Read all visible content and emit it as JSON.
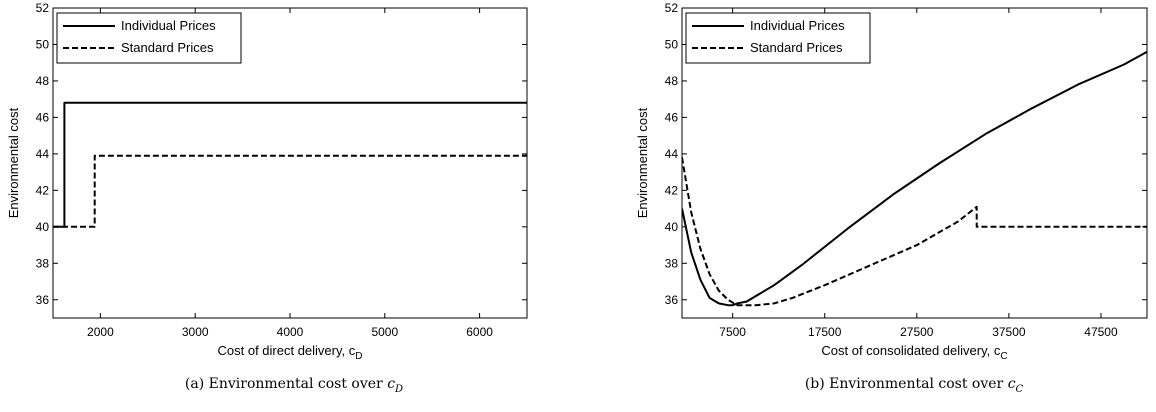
{
  "chart_data": [
    {
      "type": "line",
      "caption": "(a) Environmental cost over c_D",
      "caption_text": "(a) Environmental cost over ",
      "caption_var": "c",
      "caption_sub": "D",
      "xlabel": "Cost of direct delivery, c",
      "xlabel_sub": "D",
      "ylabel": "Environmental cost",
      "xlim": [
        1500,
        6500
      ],
      "ylim": [
        35,
        52
      ],
      "xticks": [
        2000,
        3000,
        4000,
        5000,
        6000
      ],
      "yticks": [
        36,
        38,
        40,
        42,
        44,
        46,
        48,
        50,
        52
      ],
      "legend_position": "top-left",
      "grid": false,
      "series": [
        {
          "name": "Individual Prices",
          "style": "solid",
          "x": [
            1500,
            1620,
            1620,
            6500
          ],
          "y": [
            40.0,
            40.0,
            46.8,
            46.8
          ]
        },
        {
          "name": "Standard Prices",
          "style": "dashed",
          "x": [
            1500,
            1940,
            1940,
            6500
          ],
          "y": [
            40.0,
            40.0,
            43.9,
            43.9
          ]
        }
      ]
    },
    {
      "type": "line",
      "caption": "(b) Environmental cost over c_C",
      "caption_text": "(b) Environmental cost over ",
      "caption_var": "c",
      "caption_sub": "C",
      "xlabel": "Cost of consolidated delivery, c",
      "xlabel_sub": "C",
      "ylabel": "Environmental cost",
      "xlim": [
        2000,
        52500
      ],
      "ylim": [
        35,
        52
      ],
      "xticks": [
        7500,
        17500,
        27500,
        37500,
        47500
      ],
      "yticks": [
        36,
        38,
        40,
        42,
        44,
        46,
        48,
        50,
        52
      ],
      "legend_position": "top-left",
      "grid": false,
      "series": [
        {
          "name": "Individual Prices",
          "style": "solid",
          "x": [
            2000,
            3000,
            4000,
            5000,
            6000,
            7000,
            7500,
            8000,
            9000,
            10000,
            12000,
            15000,
            20000,
            25000,
            30000,
            35000,
            40000,
            45000,
            50000,
            52500
          ],
          "y": [
            41.0,
            38.6,
            37.1,
            36.1,
            35.8,
            35.7,
            35.7,
            35.8,
            35.9,
            36.2,
            36.8,
            37.9,
            39.9,
            41.8,
            43.5,
            45.1,
            46.5,
            47.8,
            48.9,
            49.6
          ]
        },
        {
          "name": "Standard Prices",
          "style": "dashed",
          "x": [
            2000,
            3000,
            4000,
            5000,
            6000,
            7000,
            8000,
            9000,
            10000,
            12000,
            14000,
            17500,
            22500,
            27500,
            32000,
            34000,
            34000,
            52500
          ],
          "y": [
            43.8,
            40.8,
            38.8,
            37.4,
            36.5,
            36.0,
            35.7,
            35.7,
            35.7,
            35.8,
            36.1,
            36.8,
            37.9,
            39.0,
            40.3,
            41.1,
            40.0,
            40.0
          ]
        }
      ]
    }
  ]
}
